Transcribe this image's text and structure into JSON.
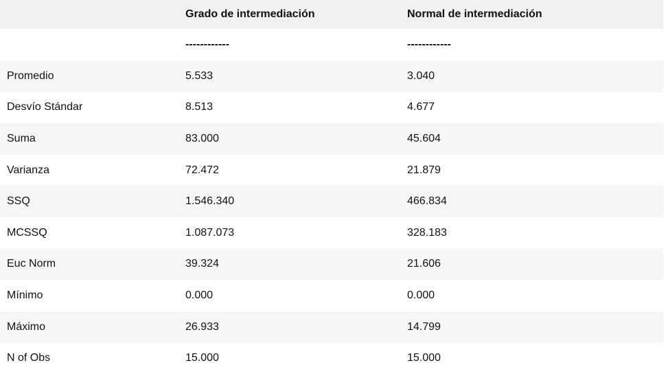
{
  "table": {
    "columns": [
      "",
      "Grado de intermediación",
      "Normal de intermediación"
    ],
    "separator": "------------",
    "rows": [
      {
        "label": "Promedio",
        "grado": "5.533",
        "normal": "3.040"
      },
      {
        "label": "Desvío Stándar",
        "grado": "8.513",
        "normal": "4.677"
      },
      {
        "label": "Suma",
        "grado": "83.000",
        "normal": "45.604"
      },
      {
        "label": "Varianza",
        "grado": "72.472",
        "normal": "21.879"
      },
      {
        "label": "SSQ",
        "grado": "1.546.340",
        "normal": "466.834"
      },
      {
        "label": "MCSSQ",
        "grado": "1.087.073",
        "normal": "328.183"
      },
      {
        "label": "Euc Norm",
        "grado": "39.324",
        "normal": "21.606"
      },
      {
        "label": "Mínimo",
        "grado": "0.000",
        "normal": "0.000"
      },
      {
        "label": "Máximo",
        "grado": "26.933",
        "normal": "14.799"
      },
      {
        "label": "N of Obs",
        "grado": "15.000",
        "normal": "15.000"
      }
    ],
    "colors": {
      "header_bg": "#f1f1f1",
      "stripe_bg": "#f6f6f6",
      "text": "#111111"
    }
  }
}
